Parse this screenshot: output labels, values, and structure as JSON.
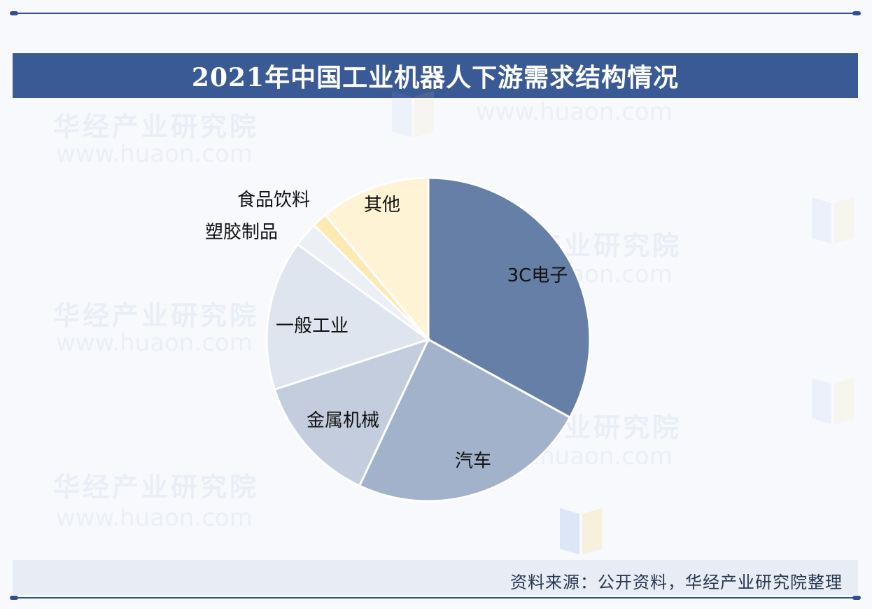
{
  "header": {
    "title": "2021年中国工业机器人下游需求结构情况"
  },
  "footer": {
    "source": "资料来源：公开资料，华经产业研究院整理"
  },
  "watermark": {
    "text": "华经产业研究院",
    "url": "www.huaon.com"
  },
  "colors": {
    "title_bar": "#3a5a96",
    "rule": "#2f4f8f",
    "source_bar": "#e8edf5"
  },
  "chart_data": {
    "type": "pie",
    "start_angle_deg": 0,
    "direction": "clockwise",
    "slices": [
      {
        "label": "3C电子",
        "value": 33,
        "color": "#667fa6"
      },
      {
        "label": "汽车",
        "value": 24,
        "color": "#a3b2cb"
      },
      {
        "label": "金属机械",
        "value": 13,
        "color": "#c3cddd"
      },
      {
        "label": "一般工业",
        "value": 15,
        "color": "#dfe5ef"
      },
      {
        "label": "塑胶制品",
        "value": 2.5,
        "color": "#eceff4"
      },
      {
        "label": "食品饮料",
        "value": 1.5,
        "color": "#fde9b2"
      },
      {
        "label": "其他",
        "value": 11,
        "color": "#fef3d4"
      }
    ]
  }
}
